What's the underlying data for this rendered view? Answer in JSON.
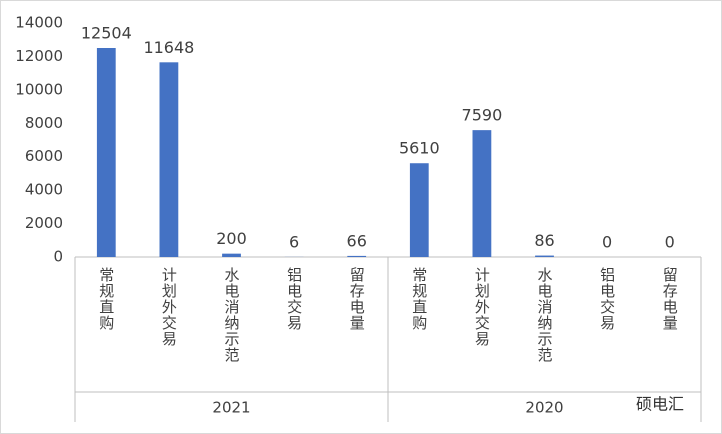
{
  "chart_data": {
    "type": "bar",
    "categories": [
      "常规直购",
      "计划外交易",
      "水电消纳示范",
      "铝电交易",
      "留存电量",
      "常规直购",
      "计划外交易",
      "水电消纳示范",
      "铝电交易",
      "留存电量"
    ],
    "groups": [
      "2021",
      "2020"
    ],
    "values": [
      12504,
      11648,
      200,
      6,
      66,
      5610,
      7590,
      86,
      0,
      0
    ],
    "color": "#4472c4",
    "ylim": [
      0,
      14000
    ],
    "yticks": [
      0,
      2000,
      4000,
      6000,
      8000,
      10000,
      12000,
      14000
    ],
    "grid": false
  },
  "watermark": "硕电汇"
}
